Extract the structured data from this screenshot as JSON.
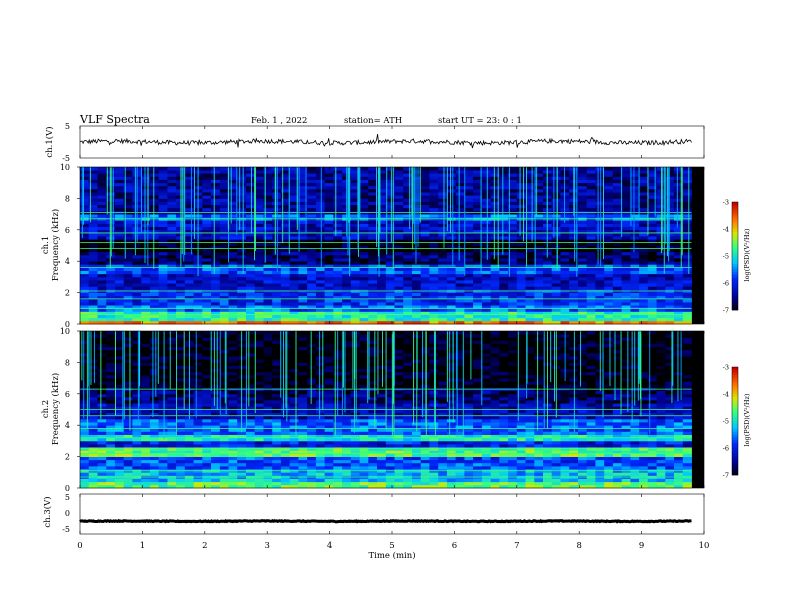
{
  "header": {
    "title": "VLF Spectra",
    "date": "Feb. 1 , 2022",
    "station": "station= ATH",
    "start": "start UT = 23: 0 : 1"
  },
  "chart_data": [
    {
      "type": "line",
      "panel": "ch1-waveform",
      "ylabel": "ch.1(V)",
      "yticks": [
        "5",
        "-5"
      ],
      "ylim": [
        -5,
        5
      ],
      "x_range_min": [
        0,
        9.8
      ],
      "trace_level_V": 0,
      "trace_noise_V": 0.7,
      "color": "#000000"
    },
    {
      "type": "heatmap",
      "panel": "ch1-spectrogram",
      "ylabel_channel": "ch.1",
      "ylabel": "Frequency (kHz)",
      "yticks": [
        "0",
        "2",
        "4",
        "6",
        "8",
        "10"
      ],
      "ylim": [
        0,
        10
      ],
      "x_range_min": [
        0,
        9.8
      ],
      "colorbar": {
        "label": "log(PSD)(V²/Hz)",
        "ticks": [
          "-3",
          "-4",
          "-5",
          "-6",
          "-7"
        ],
        "range": [
          -7,
          -3
        ]
      },
      "bands_khz": [
        {
          "from": 0.0,
          "to": 0.3,
          "level": -3.6
        },
        {
          "from": 0.3,
          "to": 0.8,
          "level": -4.8
        },
        {
          "from": 0.8,
          "to": 1.3,
          "level": -5.6
        },
        {
          "from": 1.3,
          "to": 2.2,
          "level": -5.9
        },
        {
          "from": 2.2,
          "to": 3.3,
          "level": -6.2
        },
        {
          "from": 3.3,
          "to": 3.9,
          "level": -5.7
        },
        {
          "from": 3.9,
          "to": 4.6,
          "level": -6.6
        },
        {
          "from": 4.6,
          "to": 5.4,
          "level": -7.0
        },
        {
          "from": 5.4,
          "to": 6.6,
          "level": -6.2
        },
        {
          "from": 6.6,
          "to": 7.0,
          "level": -5.6
        },
        {
          "from": 7.0,
          "to": 10.0,
          "level": -6.4
        }
      ],
      "tones_khz": [
        0.6,
        1.0,
        1.6,
        2.1,
        3.6,
        4.8,
        5.2,
        5.8,
        6.7,
        7.1
      ],
      "sferic_count": 120
    },
    {
      "type": "heatmap",
      "panel": "ch2-spectrogram",
      "ylabel_channel": "ch.2",
      "ylabel": "Frequency (kHz)",
      "yticks": [
        "0",
        "2",
        "4",
        "6",
        "8",
        "10"
      ],
      "ylim": [
        0,
        10
      ],
      "x_range_min": [
        0,
        9.8
      ],
      "colorbar": {
        "label": "log(PSD)(V²/Hz)",
        "ticks": [
          "-3",
          "-4",
          "-5",
          "-6",
          "-7"
        ],
        "range": [
          -7,
          -3
        ]
      },
      "bands_khz": [
        {
          "from": 0.0,
          "to": 0.4,
          "level": -4.6
        },
        {
          "from": 0.4,
          "to": 1.2,
          "level": -5.2
        },
        {
          "from": 1.2,
          "to": 2.0,
          "level": -5.7
        },
        {
          "from": 2.0,
          "to": 2.6,
          "level": -4.6
        },
        {
          "from": 2.6,
          "to": 3.0,
          "level": -6.0
        },
        {
          "from": 3.0,
          "to": 3.5,
          "level": -4.9
        },
        {
          "from": 3.5,
          "to": 4.4,
          "level": -5.6
        },
        {
          "from": 4.4,
          "to": 5.4,
          "level": -6.3
        },
        {
          "from": 5.4,
          "to": 6.4,
          "level": -6.6
        },
        {
          "from": 6.4,
          "to": 10.0,
          "level": -7.0
        }
      ],
      "tones_khz": [
        0.7,
        1.1,
        2.2,
        2.5,
        3.2,
        3.8,
        4.6,
        5.0,
        6.3
      ],
      "sferic_count": 110
    },
    {
      "type": "line",
      "panel": "ch3-waveform",
      "ylabel": "ch.3(V)",
      "yticks": [
        "5",
        "0",
        "-5"
      ],
      "ylim": [
        -5,
        5
      ],
      "x_range_min": [
        0,
        9.8
      ],
      "trace_level_V": -1.8,
      "trace_noise_V": 0.1,
      "color": "#000000"
    }
  ],
  "xaxis": {
    "label": "Time (min)",
    "ticks": [
      "0",
      "1",
      "2",
      "3",
      "4",
      "5",
      "6",
      "7",
      "8",
      "9",
      "10"
    ],
    "xlim": [
      0,
      10
    ]
  }
}
